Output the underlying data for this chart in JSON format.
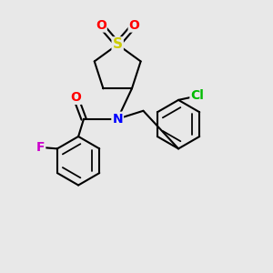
{
  "bg_color": "#e8e8e8",
  "bond_color": "#000000",
  "bond_width": 1.5,
  "atom_colors": {
    "S": "#cccc00",
    "O": "#ff0000",
    "N": "#0000ff",
    "F": "#cc00cc",
    "Cl": "#00bb00",
    "C": "#000000"
  },
  "font_size": 9,
  "xlim": [
    0,
    10
  ],
  "ylim": [
    0,
    10
  ]
}
